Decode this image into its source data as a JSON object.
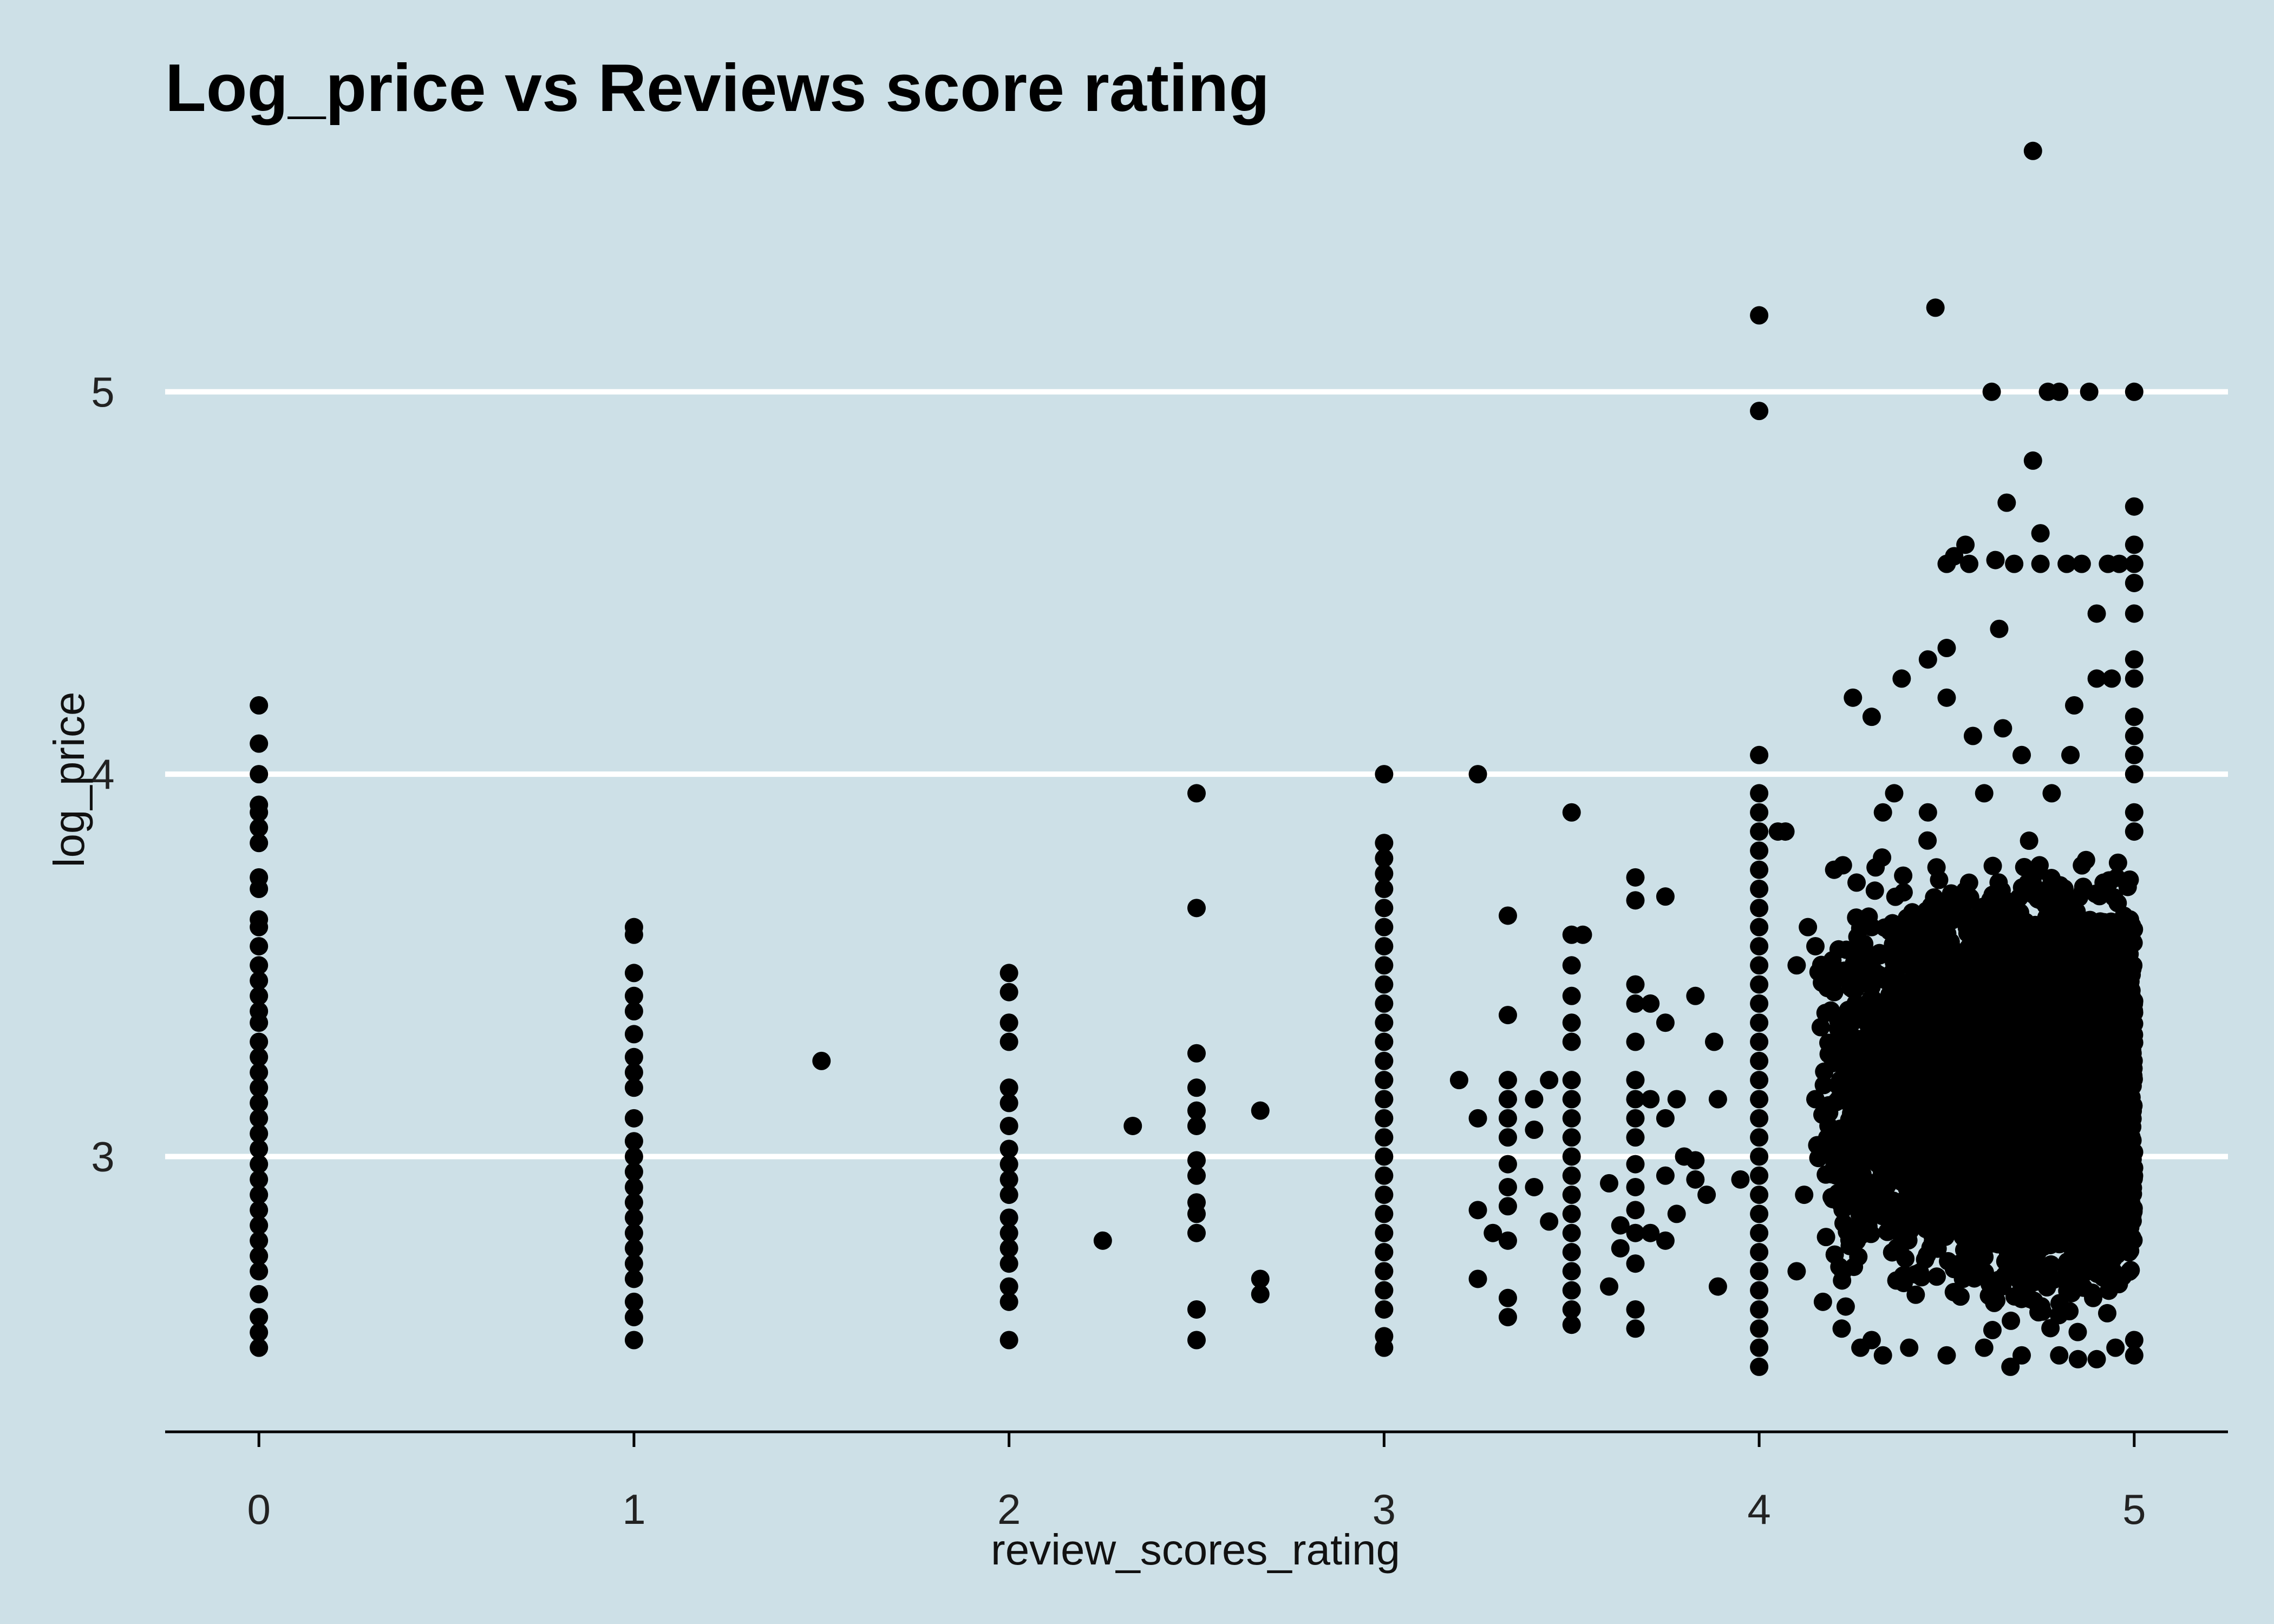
{
  "chart_data": {
    "type": "scatter",
    "title": "Log_price vs Reviews score rating",
    "xlabel": "review_scores_rating",
    "ylabel": "log_price",
    "xlim": [
      -0.25,
      5.25
    ],
    "ylim": [
      2.28,
      5.6
    ],
    "x_ticks": [
      "0",
      "1",
      "2",
      "3",
      "4",
      "5"
    ],
    "x_tick_values": [
      0,
      1,
      2,
      3,
      4,
      5
    ],
    "y_ticks": [
      "3",
      "4",
      "5"
    ],
    "y_tick_values": [
      3,
      4,
      5
    ],
    "grid": "horizontal major",
    "colors": {
      "background": "#cde0e7",
      "grid": "#ffffff",
      "point": "#000000"
    },
    "series": [
      {
        "points": [
          [
            0,
            4.18
          ],
          [
            0,
            4.08
          ],
          [
            0,
            4.0
          ],
          [
            0,
            3.92
          ],
          [
            0,
            3.9
          ],
          [
            0,
            3.86
          ],
          [
            0,
            3.82
          ],
          [
            0,
            3.73
          ],
          [
            0,
            3.7
          ],
          [
            0,
            3.62
          ],
          [
            0,
            3.6
          ],
          [
            0,
            3.55
          ],
          [
            0,
            3.5
          ],
          [
            0,
            3.46
          ],
          [
            0,
            3.42
          ],
          [
            0,
            3.38
          ],
          [
            0,
            3.35
          ],
          [
            0,
            3.3
          ],
          [
            0,
            3.26
          ],
          [
            0,
            3.22
          ],
          [
            0,
            3.18
          ],
          [
            0,
            3.14
          ],
          [
            0,
            3.1
          ],
          [
            0,
            3.06
          ],
          [
            0,
            3.02
          ],
          [
            0,
            2.98
          ],
          [
            0,
            2.94
          ],
          [
            0,
            2.9
          ],
          [
            0,
            2.86
          ],
          [
            0,
            2.82
          ],
          [
            0,
            2.78
          ],
          [
            0,
            2.74
          ],
          [
            0,
            2.7
          ],
          [
            0,
            2.64
          ],
          [
            0,
            2.58
          ],
          [
            0,
            2.54
          ],
          [
            0,
            2.5
          ],
          [
            1,
            3.6
          ],
          [
            1,
            3.58
          ],
          [
            1,
            3.48
          ],
          [
            1,
            3.42
          ],
          [
            1,
            3.38
          ],
          [
            1,
            3.32
          ],
          [
            1,
            3.26
          ],
          [
            1,
            3.22
          ],
          [
            1,
            3.18
          ],
          [
            1,
            3.1
          ],
          [
            1,
            3.04
          ],
          [
            1,
            3.0
          ],
          [
            1,
            2.96
          ],
          [
            1,
            2.92
          ],
          [
            1,
            2.88
          ],
          [
            1,
            2.84
          ],
          [
            1,
            2.8
          ],
          [
            1,
            2.76
          ],
          [
            1,
            2.72
          ],
          [
            1,
            2.68
          ],
          [
            1,
            2.62
          ],
          [
            1,
            2.58
          ],
          [
            1,
            2.52
          ],
          [
            1.5,
            3.25
          ],
          [
            2,
            3.48
          ],
          [
            2,
            3.43
          ],
          [
            2,
            3.35
          ],
          [
            2,
            3.3
          ],
          [
            2,
            3.18
          ],
          [
            2,
            3.14
          ],
          [
            2,
            3.08
          ],
          [
            2,
            3.02
          ],
          [
            2,
            2.98
          ],
          [
            2,
            2.94
          ],
          [
            2,
            2.9
          ],
          [
            2,
            2.84
          ],
          [
            2,
            2.8
          ],
          [
            2,
            2.76
          ],
          [
            2,
            2.72
          ],
          [
            2,
            2.66
          ],
          [
            2,
            2.62
          ],
          [
            2,
            2.52
          ],
          [
            2.25,
            2.78
          ],
          [
            2.33,
            3.08
          ],
          [
            2.5,
            3.95
          ],
          [
            2.5,
            3.65
          ],
          [
            2.5,
            3.27
          ],
          [
            2.5,
            3.18
          ],
          [
            2.5,
            3.12
          ],
          [
            2.5,
            3.08
          ],
          [
            2.5,
            2.99
          ],
          [
            2.5,
            2.95
          ],
          [
            2.5,
            2.88
          ],
          [
            2.5,
            2.85
          ],
          [
            2.5,
            2.8
          ],
          [
            2.5,
            2.6
          ],
          [
            2.5,
            2.52
          ],
          [
            2.67,
            3.12
          ],
          [
            2.67,
            2.68
          ],
          [
            2.67,
            2.64
          ],
          [
            3,
            4.0
          ],
          [
            3,
            3.82
          ],
          [
            3,
            3.78
          ],
          [
            3,
            3.74
          ],
          [
            3,
            3.7
          ],
          [
            3,
            3.65
          ],
          [
            3,
            3.6
          ],
          [
            3,
            3.55
          ],
          [
            3,
            3.5
          ],
          [
            3,
            3.45
          ],
          [
            3,
            3.4
          ],
          [
            3,
            3.35
          ],
          [
            3,
            3.3
          ],
          [
            3,
            3.25
          ],
          [
            3,
            3.2
          ],
          [
            3,
            3.15
          ],
          [
            3,
            3.1
          ],
          [
            3,
            3.05
          ],
          [
            3,
            3.0
          ],
          [
            3,
            2.95
          ],
          [
            3,
            2.9
          ],
          [
            3,
            2.85
          ],
          [
            3,
            2.8
          ],
          [
            3,
            2.75
          ],
          [
            3,
            2.7
          ],
          [
            3,
            2.65
          ],
          [
            3,
            2.6
          ],
          [
            3,
            2.53
          ],
          [
            3,
            2.5
          ],
          [
            3.2,
            3.2
          ],
          [
            3.25,
            4.0
          ],
          [
            3.25,
            3.1
          ],
          [
            3.25,
            2.86
          ],
          [
            3.25,
            2.68
          ],
          [
            3.29,
            2.8
          ],
          [
            3.33,
            3.63
          ],
          [
            3.33,
            3.37
          ],
          [
            3.33,
            3.2
          ],
          [
            3.33,
            3.15
          ],
          [
            3.33,
            3.1
          ],
          [
            3.33,
            3.05
          ],
          [
            3.33,
            2.98
          ],
          [
            3.33,
            2.92
          ],
          [
            3.33,
            2.87
          ],
          [
            3.33,
            2.78
          ],
          [
            3.33,
            2.63
          ],
          [
            3.33,
            2.58
          ],
          [
            3.4,
            3.15
          ],
          [
            3.4,
            3.07
          ],
          [
            3.4,
            2.92
          ],
          [
            3.44,
            3.2
          ],
          [
            3.44,
            2.83
          ],
          [
            3.5,
            3.9
          ],
          [
            3.5,
            3.58
          ],
          [
            3.5,
            3.5
          ],
          [
            3.5,
            3.42
          ],
          [
            3.5,
            3.35
          ],
          [
            3.5,
            3.3
          ],
          [
            3.5,
            3.2
          ],
          [
            3.5,
            3.15
          ],
          [
            3.5,
            3.1
          ],
          [
            3.5,
            3.05
          ],
          [
            3.5,
            3.0
          ],
          [
            3.5,
            2.95
          ],
          [
            3.5,
            2.9
          ],
          [
            3.5,
            2.85
          ],
          [
            3.5,
            2.8
          ],
          [
            3.5,
            2.75
          ],
          [
            3.5,
            2.7
          ],
          [
            3.5,
            2.65
          ],
          [
            3.5,
            2.6
          ],
          [
            3.5,
            2.56
          ],
          [
            3.53,
            3.58
          ],
          [
            3.6,
            2.93
          ],
          [
            3.6,
            2.66
          ],
          [
            3.63,
            2.82
          ],
          [
            3.63,
            2.76
          ],
          [
            3.67,
            3.73
          ],
          [
            3.67,
            3.67
          ],
          [
            3.67,
            3.45
          ],
          [
            3.67,
            3.4
          ],
          [
            3.67,
            3.3
          ],
          [
            3.67,
            3.2
          ],
          [
            3.67,
            3.15
          ],
          [
            3.67,
            3.1
          ],
          [
            3.67,
            3.05
          ],
          [
            3.67,
            2.98
          ],
          [
            3.67,
            2.92
          ],
          [
            3.67,
            2.86
          ],
          [
            3.67,
            2.8
          ],
          [
            3.67,
            2.72
          ],
          [
            3.67,
            2.6
          ],
          [
            3.67,
            2.55
          ],
          [
            3.71,
            3.4
          ],
          [
            3.71,
            3.15
          ],
          [
            3.71,
            2.8
          ],
          [
            3.75,
            3.68
          ],
          [
            3.75,
            3.35
          ],
          [
            3.75,
            3.1
          ],
          [
            3.75,
            2.95
          ],
          [
            3.75,
            2.78
          ],
          [
            3.78,
            3.15
          ],
          [
            3.78,
            2.85
          ],
          [
            3.8,
            3.0
          ],
          [
            3.83,
            3.42
          ],
          [
            3.83,
            2.99
          ],
          [
            3.83,
            2.94
          ],
          [
            3.86,
            2.9
          ],
          [
            3.88,
            3.3
          ],
          [
            3.89,
            2.66
          ],
          [
            3.89,
            3.15
          ],
          [
            3.95,
            2.94
          ],
          [
            4,
            5.2
          ],
          [
            4,
            4.95
          ],
          [
            4,
            4.05
          ],
          [
            4,
            3.95
          ],
          [
            4,
            3.9
          ],
          [
            4,
            3.85
          ],
          [
            4,
            3.8
          ],
          [
            4,
            3.75
          ],
          [
            4,
            3.7
          ],
          [
            4,
            3.65
          ],
          [
            4,
            3.6
          ],
          [
            4,
            3.55
          ],
          [
            4,
            3.5
          ],
          [
            4,
            3.45
          ],
          [
            4,
            3.4
          ],
          [
            4,
            3.35
          ],
          [
            4,
            3.3
          ],
          [
            4,
            3.25
          ],
          [
            4,
            3.2
          ],
          [
            4,
            3.15
          ],
          [
            4,
            3.1
          ],
          [
            4,
            3.05
          ],
          [
            4,
            3.0
          ],
          [
            4,
            2.95
          ],
          [
            4,
            2.9
          ],
          [
            4,
            2.85
          ],
          [
            4,
            2.8
          ],
          [
            4,
            2.75
          ],
          [
            4,
            2.7
          ],
          [
            4,
            2.65
          ],
          [
            4,
            2.6
          ],
          [
            4,
            2.55
          ],
          [
            4,
            2.5
          ],
          [
            4,
            2.45
          ],
          [
            4.05,
            3.85
          ],
          [
            4.07,
            3.85
          ],
          [
            4.1,
            3.5
          ],
          [
            4.13,
            3.6
          ],
          [
            4.15,
            3.55
          ],
          [
            4.2,
            3.75
          ],
          [
            4.25,
            4.2
          ],
          [
            4.3,
            4.15
          ],
          [
            4.33,
            3.9
          ],
          [
            4.36,
            3.95
          ],
          [
            4.38,
            4.25
          ],
          [
            4.45,
            3.9
          ],
          [
            4.45,
            4.3
          ],
          [
            4.47,
            5.22
          ],
          [
            4.5,
            4.55
          ],
          [
            4.5,
            4.33
          ],
          [
            4.5,
            4.2
          ],
          [
            4.52,
            4.57
          ],
          [
            4.55,
            4.6
          ],
          [
            4.56,
            4.55
          ],
          [
            4.57,
            4.1
          ],
          [
            4.6,
            3.95
          ],
          [
            4.62,
            5.0
          ],
          [
            4.63,
            4.56
          ],
          [
            4.64,
            4.38
          ],
          [
            4.65,
            4.12
          ],
          [
            4.66,
            4.71
          ],
          [
            4.68,
            4.55
          ],
          [
            4.7,
            4.05
          ],
          [
            4.73,
            5.63
          ],
          [
            4.73,
            4.82
          ],
          [
            4.75,
            4.63
          ],
          [
            4.75,
            4.55
          ],
          [
            4.77,
            5.0
          ],
          [
            4.78,
            3.95
          ],
          [
            4.8,
            5.0
          ],
          [
            4.82,
            4.55
          ],
          [
            4.83,
            4.05
          ],
          [
            4.84,
            4.18
          ],
          [
            4.86,
            4.55
          ],
          [
            4.88,
            5.0
          ],
          [
            4.9,
            4.42
          ],
          [
            4.9,
            4.25
          ],
          [
            4.93,
            4.55
          ],
          [
            4.94,
            4.25
          ],
          [
            4.96,
            4.55
          ],
          [
            5,
            5.0
          ],
          [
            5,
            4.7
          ],
          [
            5,
            4.6
          ],
          [
            5,
            4.55
          ],
          [
            5,
            4.5
          ],
          [
            5,
            4.42
          ],
          [
            5,
            4.3
          ],
          [
            5,
            4.25
          ],
          [
            5,
            4.15
          ],
          [
            5,
            4.1
          ],
          [
            5,
            4.05
          ],
          [
            5,
            4.0
          ],
          [
            5,
            3.9
          ],
          [
            5,
            3.85
          ],
          [
            4.1,
            2.7
          ],
          [
            4.12,
            2.9
          ],
          [
            4.15,
            3.15
          ],
          [
            4.17,
            2.62
          ],
          [
            4.2,
            3.3
          ],
          [
            4.22,
            2.55
          ],
          [
            4.25,
            3.45
          ],
          [
            4.27,
            2.5
          ],
          [
            4.3,
            3.6
          ],
          [
            4.3,
            2.52
          ],
          [
            4.33,
            2.48
          ],
          [
            4.4,
            2.5
          ],
          [
            4.5,
            2.48
          ],
          [
            4.6,
            2.5
          ],
          [
            4.67,
            2.45
          ],
          [
            4.7,
            2.48
          ],
          [
            4.8,
            2.48
          ],
          [
            4.85,
            2.47
          ],
          [
            4.9,
            2.47
          ],
          [
            4.95,
            2.5
          ],
          [
            5,
            2.48
          ],
          [
            5,
            2.52
          ]
        ]
      }
    ],
    "dense_region": {
      "x_range": [
        4.15,
        5.0
      ],
      "y_range": [
        2.5,
        3.85
      ]
    }
  }
}
